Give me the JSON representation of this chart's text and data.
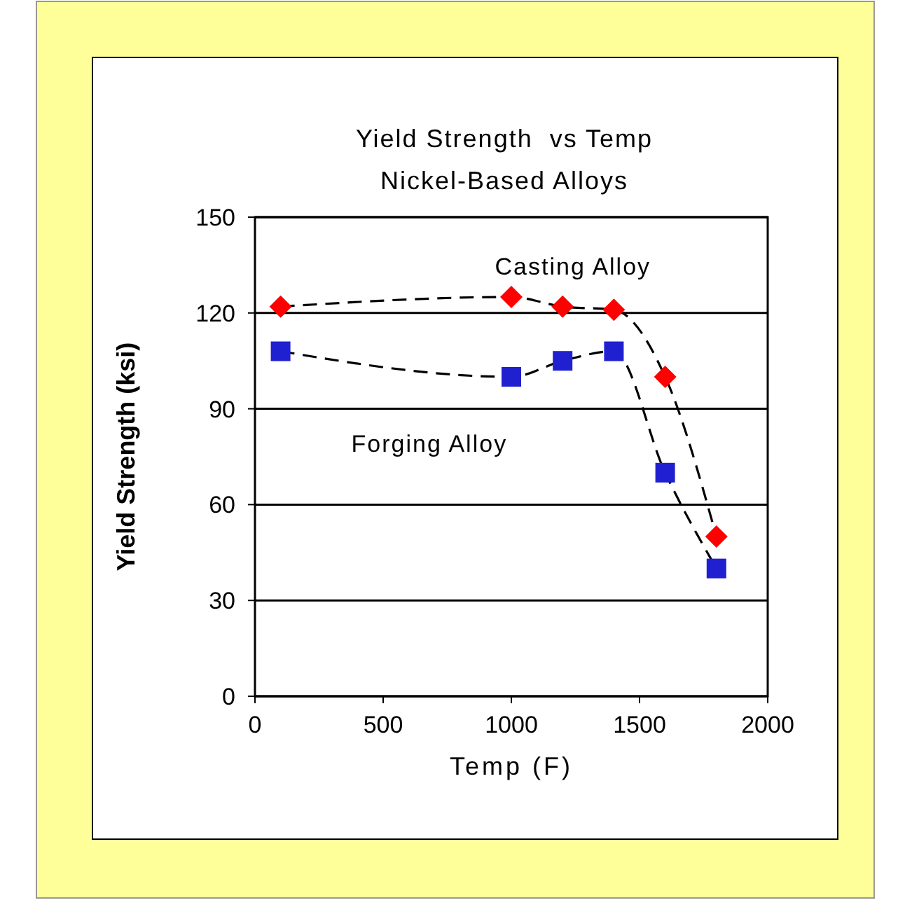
{
  "chart_data": {
    "type": "scatter",
    "title": "Yield Strength  vs Temp\nNickel-Based Alloys",
    "xlabel": "Temp (F)",
    "ylabel": "Yield Strength (ksi)",
    "series": [
      {
        "type": "line",
        "color": "#000000",
        "marker": "none",
        "line_style": "dashed",
        "x": [
          100,
          1000,
          1200,
          1400,
          1600,
          1800
        ],
        "values": [
          122,
          125,
          122,
          121,
          100,
          50
        ]
      },
      {
        "type": "line",
        "color": "#000000",
        "marker": "none",
        "line_style": "dashed",
        "x": [
          100,
          1000,
          1200,
          1400,
          1600,
          1800
        ],
        "values": [
          108,
          100,
          105,
          108,
          70,
          40
        ]
      },
      {
        "name": "Casting Alloy",
        "color": "#ff0000",
        "marker": "diamond",
        "x": [
          100,
          1000,
          1200,
          1400,
          1600,
          1800
        ],
        "values": [
          122,
          125,
          122,
          121,
          100,
          50
        ]
      },
      {
        "name": "Forging Alloy",
        "color": "#2020d0",
        "marker": "square",
        "x": [
          100,
          1000,
          1200,
          1400,
          1600,
          1800
        ],
        "values": [
          108,
          100,
          105,
          108,
          70,
          40
        ]
      }
    ],
    "xlim": [
      0,
      2000
    ],
    "xticks": [
      0,
      500,
      1000,
      1500,
      2000
    ],
    "ylim": [
      0,
      150
    ],
    "yticks": [
      0,
      30,
      60,
      90,
      120,
      150
    ],
    "grid": "y"
  }
}
